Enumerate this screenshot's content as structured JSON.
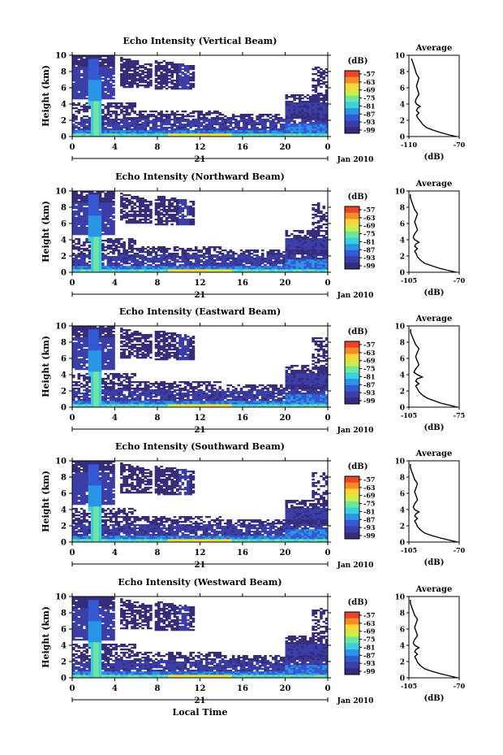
{
  "chart_data": {
    "type": "heatmap",
    "x_label": "Local Time",
    "date_label": "Jan 2010",
    "day_label": "21",
    "y_label": "Height (km)",
    "x_ticks": [
      "0",
      "4",
      "8",
      "12",
      "16",
      "20",
      "0"
    ],
    "xlim_hours": [
      0,
      24
    ],
    "y_ticks": [
      "0",
      "2",
      "4",
      "6",
      "8",
      "10"
    ],
    "ylim_km": [
      0,
      10
    ],
    "colorbar": {
      "unit_label": "(dB)",
      "ticks": [
        "-57",
        "-63",
        "-69",
        "-75",
        "-81",
        "-87",
        "-93",
        "-99"
      ],
      "colors": [
        "#e8452a",
        "#f58a2a",
        "#fbd53a",
        "#c9ee4c",
        "#6ee6a0",
        "#3ccfdf",
        "#2a95e6",
        "#3459d2",
        "#3b3ea6",
        "#352c7a"
      ]
    },
    "average_profile": {
      "title": "Average",
      "xlabel": "(dB)",
      "y_ticks": [
        "0",
        "2",
        "4",
        "6",
        "8",
        "10"
      ],
      "ylim_km": [
        0,
        10
      ],
      "heights_km": [
        0.0,
        0.2,
        0.5,
        0.8,
        1.1,
        1.5,
        1.9,
        2.3,
        2.6,
        2.9,
        3.2,
        3.5,
        3.7,
        4.0,
        4.3,
        4.7,
        5.2,
        5.7,
        6.2,
        6.7,
        7.2,
        7.7,
        8.2,
        8.7,
        9.2,
        9.6
      ]
    },
    "panels": [
      {
        "title": "Echo Intensity (Vertical Beam)",
        "profile_xticks": [
          "-110",
          "-70"
        ],
        "profile_xlim": [
          -110,
          -70
        ],
        "profile_db": [
          -72,
          -78,
          -85,
          -91,
          -96,
          -99,
          -101,
          -103,
          -104,
          -102,
          -104,
          -103,
          -101,
          -104,
          -105,
          -104,
          -102,
          -103,
          -104,
          -103,
          -102,
          -104,
          -105,
          -106,
          -107,
          -108
        ]
      },
      {
        "title": "Echo Intensity (Northward Beam)",
        "profile_xticks": [
          "-105",
          "-70"
        ],
        "profile_xlim": [
          -105,
          -70
        ],
        "profile_db": [
          -72,
          -77,
          -84,
          -89,
          -94,
          -97,
          -99,
          -100,
          -101,
          -99,
          -101,
          -100,
          -98,
          -101,
          -102,
          -101,
          -99,
          -100,
          -101,
          -100,
          -99,
          -101,
          -102,
          -103,
          -104,
          -104
        ]
      },
      {
        "title": "Echo Intensity (Eastward Beam)",
        "profile_xticks": [
          "-105",
          "-75"
        ],
        "profile_xlim": [
          -105,
          -75
        ],
        "profile_db": [
          -76,
          -80,
          -86,
          -90,
          -94,
          -97,
          -99,
          -100,
          -101,
          -99,
          -101,
          -100,
          -97,
          -100,
          -102,
          -101,
          -99,
          -100,
          -101,
          -100,
          -99,
          -101,
          -102,
          -103,
          -104,
          -104
        ]
      },
      {
        "title": "Echo Intensity (Southward Beam)",
        "profile_xticks": [
          "-105",
          "-70"
        ],
        "profile_xlim": [
          -105,
          -70
        ],
        "profile_db": [
          -71,
          -76,
          -83,
          -89,
          -94,
          -97,
          -99,
          -100,
          -101,
          -99,
          -101,
          -100,
          -98,
          -101,
          -102,
          -101,
          -99,
          -100,
          -101,
          -100,
          -99,
          -101,
          -102,
          -103,
          -104,
          -104
        ]
      },
      {
        "title": "Echo Intensity (Westward Beam)",
        "profile_xticks": [
          "-105",
          "-70"
        ],
        "profile_xlim": [
          -105,
          -70
        ],
        "profile_db": [
          -71,
          -76,
          -83,
          -89,
          -94,
          -97,
          -99,
          -100,
          -101,
          -99,
          -101,
          -100,
          -98,
          -101,
          -102,
          -101,
          -99,
          -100,
          -101,
          -100,
          -99,
          -101,
          -102,
          -103,
          -104,
          -104
        ]
      }
    ]
  }
}
